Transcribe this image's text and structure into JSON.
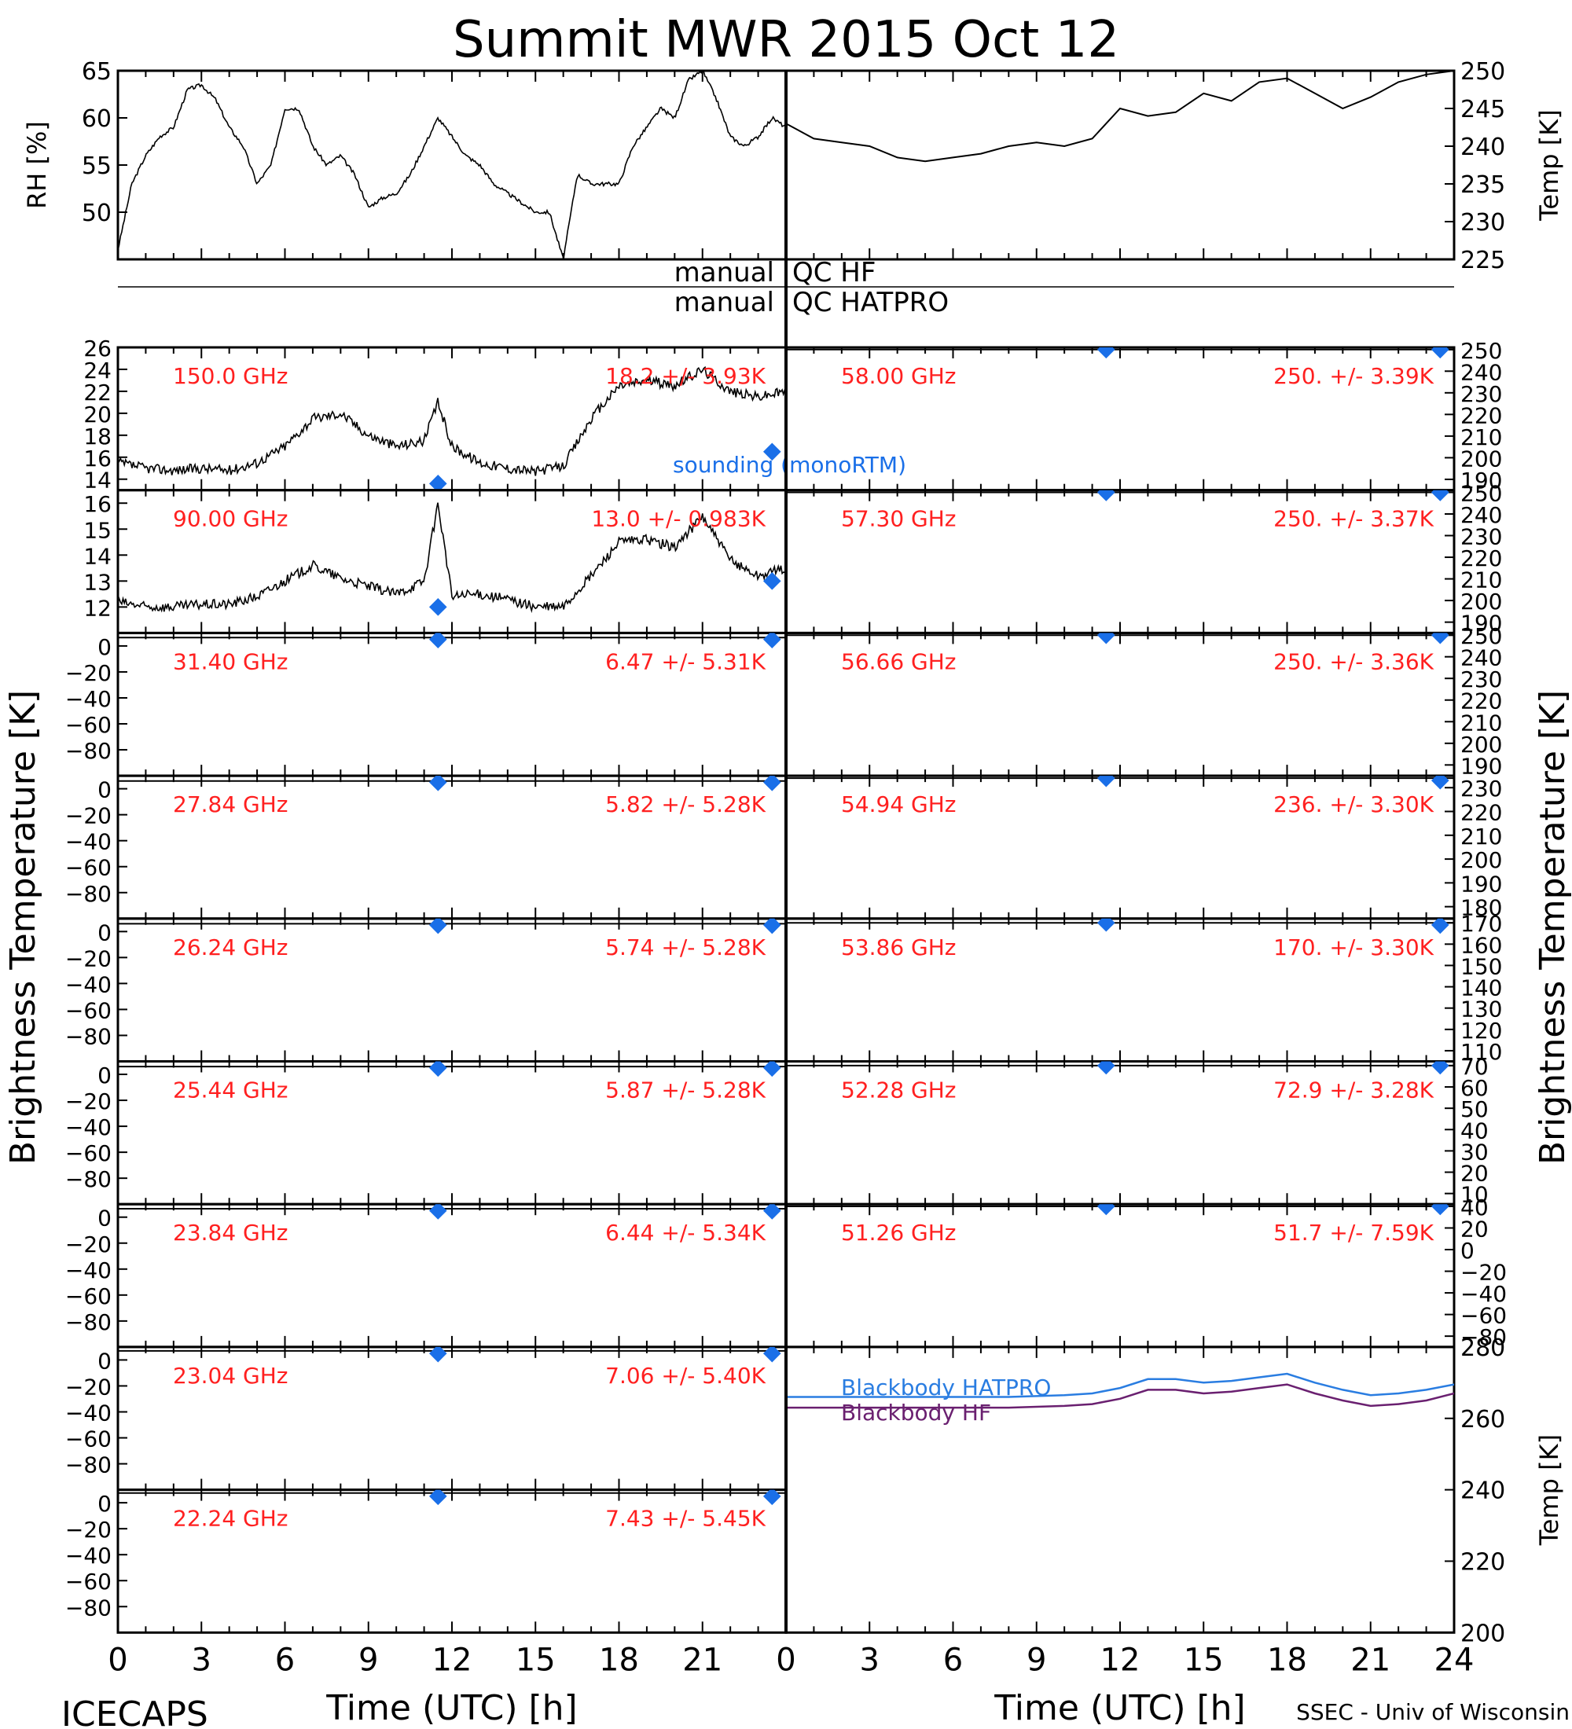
{
  "title": "Summit MWR 2015 Oct 12",
  "footer": {
    "left": "ICECAPS",
    "right": "SSEC - Univ of Wisconsin"
  },
  "xaxis": {
    "label": "Time (UTC) [h]",
    "ticks_left": [
      "0",
      "3",
      "6",
      "9",
      "12",
      "15",
      "18",
      "21"
    ],
    "ticks_right": [
      "0",
      "3",
      "6",
      "9",
      "12",
      "15",
      "18",
      "21",
      "24"
    ]
  },
  "qc_labels": [
    "manual",
    "QC HF",
    "manual",
    "QC HATPRO"
  ],
  "y_labels": {
    "left": "Brightness Temperature [K]",
    "right": "Brightness Temperature [K]"
  },
  "legend": {
    "sounding": "sounding (monoRTM)",
    "bb_hatpro": "Blackbody HATPRO",
    "bb_hf": "Blackbody HF"
  },
  "colors": {
    "data_line": "#000000",
    "channel_label": "#ff2020",
    "sounding": "#1a6fe8",
    "bb_hatpro": "#2a7de1",
    "bb_hf": "#6a2070"
  },
  "chart_data": [
    {
      "type": "line",
      "title": "",
      "xlabel": "",
      "ylabel": "RH [%]",
      "ylim": [
        45,
        65
      ],
      "ytick_labels": [
        "50",
        "55",
        "60",
        "65"
      ],
      "series": [
        {
          "name": "",
          "x": [
            0,
            0.5,
            1,
            1.5,
            2,
            2.5,
            3,
            3.5,
            4,
            4.5,
            5,
            5.5,
            6,
            6.5,
            7,
            7.5,
            8,
            8.5,
            9,
            9.5,
            10,
            10.5,
            11,
            11.5,
            12,
            12.5,
            13,
            13.5,
            14,
            14.5,
            15,
            15.5,
            16,
            16.5,
            17,
            17.5,
            18,
            18.5,
            19,
            19.5,
            20,
            20.5,
            21,
            21.5,
            22,
            22.5,
            23,
            23.5,
            24
          ],
          "y": [
            46,
            53,
            56,
            58,
            59,
            63,
            63.5,
            62,
            59,
            57,
            53,
            55,
            61,
            61,
            57,
            55,
            56,
            54,
            50.5,
            51.5,
            52,
            54,
            57,
            60,
            58,
            56,
            55,
            53,
            52,
            51,
            50,
            50,
            45,
            54,
            53,
            53,
            53,
            57,
            59,
            61,
            60,
            64,
            65,
            62,
            58,
            57,
            58,
            60,
            59
          ]
        }
      ]
    },
    {
      "type": "line",
      "title": "",
      "xlabel": "",
      "ylabel": "Temp [K]",
      "ylim": [
        225,
        250
      ],
      "ytick_labels": [
        "225",
        "230",
        "235",
        "240",
        "245",
        "250"
      ],
      "series": [
        {
          "name": "",
          "x": [
            0,
            1,
            2,
            3,
            4,
            5,
            6,
            7,
            8,
            9,
            10,
            11,
            12,
            13,
            14,
            15,
            16,
            17,
            18,
            19,
            20,
            21,
            22,
            23,
            24
          ],
          "y": [
            243,
            241,
            240.5,
            240,
            238.5,
            238,
            238.5,
            239,
            240,
            240.5,
            240,
            241,
            245,
            244,
            244.5,
            247,
            246,
            248.5,
            249,
            247,
            245,
            246.5,
            248.5,
            249.5,
            250
          ]
        }
      ]
    },
    {
      "type": "line",
      "title": "",
      "xlabel": "",
      "ylabel": "",
      "ylim": [
        13,
        26
      ],
      "ytick_labels": [
        "14",
        "16",
        "18",
        "20",
        "22",
        "24",
        "26"
      ],
      "annotations": [
        "150.0 GHz",
        "18.2 +/- 3.93K"
      ],
      "series": [
        {
          "name": "",
          "x": [
            0,
            1,
            2,
            3,
            4,
            5,
            6,
            7,
            8,
            9,
            10,
            11,
            11.5,
            12,
            13,
            14,
            15,
            16,
            17,
            18,
            19,
            20,
            21,
            22,
            23,
            24
          ],
          "y": [
            15.5,
            15,
            14.8,
            15,
            14.8,
            15.5,
            17,
            19.5,
            20,
            18,
            17,
            17.5,
            21,
            17,
            15.5,
            15,
            14.7,
            15.2,
            19.5,
            22.5,
            23,
            22.5,
            24,
            22,
            21.5,
            22
          ]
        },
        {
          "name": "sounding (monoRTM)",
          "x": [
            11.5,
            23.5
          ],
          "y": [
            13.6,
            16.5
          ]
        }
      ]
    },
    {
      "type": "line",
      "title": "",
      "xlabel": "",
      "ylabel": "",
      "ylim": [
        11,
        16.5
      ],
      "ytick_labels": [
        "12",
        "13",
        "14",
        "15",
        "16"
      ],
      "annotations": [
        "90.00 GHz",
        "13.0 +/- 0.983K"
      ],
      "series": [
        {
          "name": "",
          "x": [
            0,
            1,
            2,
            3,
            4,
            5,
            6,
            7,
            8,
            9,
            10,
            11,
            11.5,
            12,
            13,
            14,
            15,
            16,
            17,
            18,
            19,
            20,
            21,
            22,
            23,
            24
          ],
          "y": [
            12.2,
            12,
            12,
            12.1,
            12.1,
            12.4,
            13,
            13.6,
            13.1,
            12.8,
            12.5,
            13,
            16,
            12.4,
            12.5,
            12.3,
            12,
            12,
            13.2,
            14.5,
            14.6,
            14.3,
            15.5,
            13.8,
            13.2,
            13.5
          ]
        },
        {
          "name": "sounding (monoRTM)",
          "x": [
            11.5,
            23.5
          ],
          "y": [
            12,
            13
          ]
        }
      ]
    },
    {
      "type": "line",
      "title": "",
      "xlabel": "",
      "ylabel": "",
      "ylim": [
        -100,
        10
      ],
      "ytick_labels": [
        "0",
        "−20",
        "−40",
        "−60",
        "−80"
      ],
      "annotations": [
        "31.40 GHz",
        "6.47 +/- 5.31K"
      ],
      "series": [
        {
          "name": "",
          "x": [
            0,
            24
          ],
          "y": [
            6.5,
            6.5
          ]
        },
        {
          "name": "sounding (monoRTM)",
          "x": [
            11.5,
            23.5
          ],
          "y": [
            5,
            5
          ]
        }
      ]
    },
    {
      "type": "line",
      "title": "",
      "xlabel": "",
      "ylabel": "",
      "ylim": [
        -100,
        10
      ],
      "ytick_labels": [
        "0",
        "−20",
        "−40",
        "−60",
        "−80"
      ],
      "annotations": [
        "27.84 GHz",
        "5.82 +/- 5.28K"
      ],
      "series": [
        {
          "name": "",
          "x": [
            0,
            24
          ],
          "y": [
            6,
            6
          ]
        },
        {
          "name": "sounding (monoRTM)",
          "x": [
            11.5,
            23.5
          ],
          "y": [
            5,
            5
          ]
        }
      ]
    },
    {
      "type": "line",
      "title": "",
      "xlabel": "",
      "ylabel": "",
      "ylim": [
        -100,
        10
      ],
      "ytick_labels": [
        "0",
        "−20",
        "−40",
        "−60",
        "−80"
      ],
      "annotations": [
        "26.24 GHz",
        "5.74 +/- 5.28K"
      ],
      "series": [
        {
          "name": "",
          "x": [
            0,
            24
          ],
          "y": [
            6,
            6
          ]
        },
        {
          "name": "sounding (monoRTM)",
          "x": [
            11.5,
            23.5
          ],
          "y": [
            5,
            5
          ]
        }
      ]
    },
    {
      "type": "line",
      "title": "",
      "xlabel": "",
      "ylabel": "",
      "ylim": [
        -100,
        10
      ],
      "ytick_labels": [
        "0",
        "−20",
        "−40",
        "−60",
        "−80"
      ],
      "annotations": [
        "25.44 GHz",
        "5.87 +/- 5.28K"
      ],
      "series": [
        {
          "name": "",
          "x": [
            0,
            24
          ],
          "y": [
            6,
            6
          ]
        },
        {
          "name": "sounding (monoRTM)",
          "x": [
            11.5,
            23.5
          ],
          "y": [
            5,
            5
          ]
        }
      ]
    },
    {
      "type": "line",
      "title": "",
      "xlabel": "",
      "ylabel": "",
      "ylim": [
        -100,
        10
      ],
      "ytick_labels": [
        "0",
        "−20",
        "−40",
        "−60",
        "−80"
      ],
      "annotations": [
        "23.84 GHz",
        "6.44 +/- 5.34K"
      ],
      "series": [
        {
          "name": "",
          "x": [
            0,
            24
          ],
          "y": [
            6.5,
            6.5
          ]
        },
        {
          "name": "sounding (monoRTM)",
          "x": [
            11.5,
            23.5
          ],
          "y": [
            5,
            5
          ]
        }
      ]
    },
    {
      "type": "line",
      "title": "",
      "xlabel": "",
      "ylabel": "",
      "ylim": [
        -100,
        10
      ],
      "ytick_labels": [
        "0",
        "−20",
        "−40",
        "−60",
        "−80"
      ],
      "annotations": [
        "23.04 GHz",
        "7.06 +/- 5.40K"
      ],
      "series": [
        {
          "name": "",
          "x": [
            0,
            24
          ],
          "y": [
            7,
            7
          ]
        },
        {
          "name": "sounding (monoRTM)",
          "x": [
            11.5,
            23.5
          ],
          "y": [
            5,
            5
          ]
        }
      ]
    },
    {
      "type": "line",
      "title": "",
      "xlabel": "",
      "ylabel": "",
      "ylim": [
        -100,
        10
      ],
      "ytick_labels": [
        "0",
        "−20",
        "−40",
        "−60",
        "−80"
      ],
      "annotations": [
        "22.24 GHz",
        "7.43 +/- 5.45K"
      ],
      "series": [
        {
          "name": "",
          "x": [
            0,
            24
          ],
          "y": [
            7.5,
            7.5
          ]
        },
        {
          "name": "sounding (monoRTM)",
          "x": [
            11.5,
            23.5
          ],
          "y": [
            5,
            5
          ]
        }
      ]
    },
    {
      "type": "line",
      "title": "",
      "xlabel": "",
      "ylabel": "",
      "ylim": [
        185,
        251
      ],
      "ytick_labels": [
        "190",
        "200",
        "210",
        "220",
        "230",
        "240",
        "250"
      ],
      "annotations": [
        "58.00 GHz",
        "250. +/- 3.39K"
      ],
      "series": [
        {
          "name": "",
          "x": [
            0,
            24
          ],
          "y": [
            250,
            250
          ]
        },
        {
          "name": "sounding (monoRTM)",
          "x": [
            11.5,
            23.5
          ],
          "y": [
            250,
            250
          ]
        }
      ]
    },
    {
      "type": "line",
      "title": "",
      "xlabel": "",
      "ylabel": "",
      "ylim": [
        185,
        251
      ],
      "ytick_labels": [
        "190",
        "200",
        "210",
        "220",
        "230",
        "240",
        "250"
      ],
      "annotations": [
        "57.30 GHz",
        "250. +/- 3.37K"
      ],
      "series": [
        {
          "name": "",
          "x": [
            0,
            24
          ],
          "y": [
            250,
            250
          ]
        },
        {
          "name": "sounding (monoRTM)",
          "x": [
            11.5,
            23.5
          ],
          "y": [
            250,
            250
          ]
        }
      ]
    },
    {
      "type": "line",
      "title": "",
      "xlabel": "",
      "ylabel": "",
      "ylim": [
        185,
        251
      ],
      "ytick_labels": [
        "190",
        "200",
        "210",
        "220",
        "230",
        "240",
        "250"
      ],
      "annotations": [
        "56.66 GHz",
        "250. +/- 3.36K"
      ],
      "series": [
        {
          "name": "",
          "x": [
            0,
            24
          ],
          "y": [
            250,
            250
          ]
        },
        {
          "name": "sounding (monoRTM)",
          "x": [
            11.5,
            23.5
          ],
          "y": [
            250,
            250
          ]
        }
      ]
    },
    {
      "type": "line",
      "title": "",
      "xlabel": "",
      "ylabel": "",
      "ylim": [
        175,
        235
      ],
      "ytick_labels": [
        "180",
        "190",
        "200",
        "210",
        "220",
        "230"
      ],
      "annotations": [
        "54.94 GHz",
        "236. +/- 3.30K"
      ],
      "series": [
        {
          "name": "",
          "x": [
            0,
            24
          ],
          "y": [
            234,
            234
          ]
        },
        {
          "name": "sounding (monoRTM)",
          "x": [
            11.5,
            23.5
          ],
          "y": [
            234,
            233
          ]
        }
      ]
    },
    {
      "type": "line",
      "title": "",
      "xlabel": "",
      "ylabel": "",
      "ylim": [
        105,
        172
      ],
      "ytick_labels": [
        "110",
        "120",
        "130",
        "140",
        "150",
        "160",
        "170"
      ],
      "annotations": [
        "53.86 GHz",
        "170. +/- 3.30K"
      ],
      "series": [
        {
          "name": "",
          "x": [
            0,
            24
          ],
          "y": [
            170,
            170
          ]
        },
        {
          "name": "sounding (monoRTM)",
          "x": [
            11.5,
            23.5
          ],
          "y": [
            170,
            169
          ]
        }
      ]
    },
    {
      "type": "line",
      "title": "",
      "xlabel": "",
      "ylabel": "",
      "ylim": [
        5,
        72
      ],
      "ytick_labels": [
        "10",
        "20",
        "30",
        "40",
        "50",
        "60",
        "70"
      ],
      "annotations": [
        "52.28 GHz",
        "72.9 +/- 3.28K"
      ],
      "series": [
        {
          "name": "",
          "x": [
            0,
            24
          ],
          "y": [
            70,
            70
          ]
        },
        {
          "name": "sounding (monoRTM)",
          "x": [
            11.5,
            23.5
          ],
          "y": [
            70,
            70
          ]
        }
      ]
    },
    {
      "type": "line",
      "title": "",
      "xlabel": "",
      "ylabel": "",
      "ylim": [
        -90,
        42
      ],
      "ytick_labels": [
        "−80",
        "−60",
        "−40",
        "−20",
        "0",
        "20",
        "40"
      ],
      "annotations": [
        "51.26 GHz",
        "51.7 +/- 7.59K"
      ],
      "series": [
        {
          "name": "",
          "x": [
            0,
            24
          ],
          "y": [
            40,
            40
          ]
        },
        {
          "name": "sounding (monoRTM)",
          "x": [
            11.5,
            23.5
          ],
          "y": [
            40,
            40
          ]
        }
      ]
    },
    {
      "type": "line",
      "title": "",
      "xlabel": "",
      "ylabel": "Temp [K]",
      "ylim": [
        200,
        280
      ],
      "ytick_labels": [
        "200",
        "220",
        "240",
        "260",
        "280"
      ],
      "series": [
        {
          "name": "Blackbody HATPRO",
          "x": [
            0,
            2,
            4,
            6,
            8,
            10,
            11,
            12,
            13,
            14,
            15,
            16,
            17,
            18,
            19,
            20,
            21,
            22,
            23,
            24
          ],
          "y": [
            266,
            266,
            266,
            266,
            266,
            266.5,
            267,
            268.5,
            271,
            271,
            270,
            270.5,
            271.5,
            272.5,
            270,
            268,
            266.5,
            267,
            268,
            269.5
          ]
        },
        {
          "name": "Blackbody HF",
          "x": [
            0,
            2,
            4,
            6,
            8,
            10,
            11,
            12,
            13,
            14,
            15,
            16,
            17,
            18,
            19,
            20,
            21,
            22,
            23,
            24
          ],
          "y": [
            263,
            263,
            263,
            263,
            263,
            263.5,
            264,
            265.5,
            268,
            268,
            267,
            267.5,
            268.5,
            269.5,
            267,
            265,
            263.5,
            264,
            265,
            267
          ]
        }
      ]
    }
  ]
}
